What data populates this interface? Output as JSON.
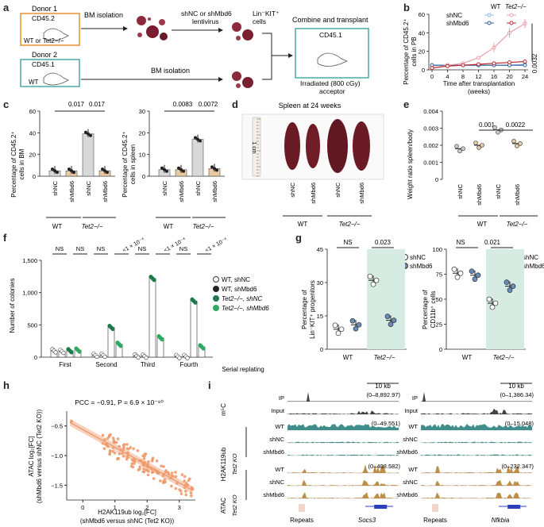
{
  "panels": {
    "a": "a",
    "b": "b",
    "c": "c",
    "d": "d",
    "e": "e",
    "f": "f",
    "g": "g",
    "h": "h",
    "i": "i"
  },
  "a": {
    "donor1": "Donor 1",
    "donor1_cd": "CD45.2",
    "donor1_geno": "WT or Tet2−/−",
    "donor2": "Donor 2",
    "donor2_cd": "CD45.1",
    "donor2_geno": "WT",
    "bm_isolation": "BM isolation",
    "bm_isolation2": "BM isolation",
    "lentivirus_1": "shNC or shMbd6",
    "lentivirus_2": "lentivirus",
    "lin_kit": "Lin⁻KIT⁺",
    "cells": "cells",
    "combine": "Combine and transplant",
    "acceptor_cd": "CD45.1",
    "acceptor_1": "Irradiated (800 cGy)",
    "acceptor_2": "acceptor"
  },
  "b": {
    "ylabel_1": "Percentage of CD45.2⁺",
    "ylabel_2": "cells in PB",
    "xlabel_1": "Time after transplantation",
    "xlabel_2": "(weeks)",
    "legend_wt": "WT",
    "legend_tet2": "Tet2−/−",
    "legend_shnc": "shNC",
    "legend_shmbd6": "shMbd6",
    "pvalue": "0.0032",
    "yticks": [
      "0",
      "20",
      "40",
      "60"
    ],
    "xticks": [
      "0",
      "4",
      "8",
      "12",
      "16",
      "20",
      "24"
    ]
  },
  "c": {
    "left_ylabel_1": "Percentage of CD45.2⁺",
    "left_ylabel_2": "cells in BM",
    "left_p1": "0.017",
    "left_p2": "0.017",
    "left_yticks": [
      "0",
      "20",
      "40",
      "60"
    ],
    "right_ylabel_1": "Percentage of CD45.2⁺",
    "right_ylabel_2": "cells in spleen",
    "right_p1": "0.0083",
    "right_p2": "0.0072",
    "right_yticks": [
      "0",
      "10",
      "20",
      "30"
    ],
    "xcats": [
      "shNC",
      "shMbd6",
      "shNC",
      "shMbd6"
    ],
    "group_wt": "WT",
    "group_tet2": "Tet2−/−"
  },
  "d": {
    "title": "Spleen at 24 weeks",
    "ruler": "1 cm",
    "xcats": [
      "shNC",
      "shMbd6",
      "shNC",
      "shMbd6"
    ],
    "group_wt": "WT",
    "group_tet2": "Tet2−/−"
  },
  "e": {
    "ylabel": "Weight ratio spleen/body",
    "p1": "0.001",
    "p2": "0.0022",
    "yticks": [
      "0",
      "0.001",
      "0.002",
      "0.003",
      "0.004"
    ],
    "xcats": [
      "shNC",
      "shMbd6",
      "shNC",
      "shMbd6"
    ],
    "group_wt": "WT",
    "group_tet2": "Tet2−/−"
  },
  "f": {
    "ylabel": "Number of colonies",
    "yticks": [
      "0",
      "500",
      "1,000",
      "1,500"
    ],
    "xcats": [
      "First",
      "Second",
      "Third",
      "Fourth"
    ],
    "xaxis": "Serial replating",
    "sig": [
      "NS",
      "NS",
      "NS",
      "<1 × 10⁻⁴",
      "NS",
      "<1 × 10⁻⁴",
      "NS",
      "<1 × 10⁻⁴"
    ],
    "legend": [
      "WT, shNC",
      "WT, shMbd6",
      "Tet2−/−, shNC",
      "Tet2−/−, shMbd6"
    ]
  },
  "g": {
    "left_ylabel_1": "Percentage of",
    "left_ylabel_2": "Lin⁻KIT⁺ progenitors",
    "left_ns": "NS",
    "left_p": "0.023",
    "left_yticks": [
      "0",
      "15",
      "30",
      "45"
    ],
    "right_ylabel_1": "Percentage of",
    "right_ylabel_2": "CD11b⁺ cells",
    "right_ns": "NS",
    "right_p": "0.021",
    "right_yticks": [
      "0",
      "25",
      "50",
      "75",
      "100"
    ],
    "xcats": [
      "WT",
      "Tet2−/−"
    ],
    "legend_shnc": "shNC",
    "legend_shmbd6": "shMbd6"
  },
  "h": {
    "annotation": "PCC = −0.91, P = 6.9 × 10⁻⁸⁰",
    "ylabel_1": "ATAC log₂[FC]",
    "ylabel_2": "(shMbd6 versus shNC (Tet2 KO))",
    "xlabel_1": "H2AK119ub log₂[FC]",
    "xlabel_2": "(shMbd6 versus shNC (Tet2 KO))",
    "yticks": [
      "−0.5",
      "−1.0",
      "−1.5"
    ],
    "xticks": [
      "0",
      "1",
      "2",
      "3"
    ]
  },
  "i": {
    "scale_left": "10 kb",
    "scale_right": "10 kb",
    "m5c": "m⁵C",
    "h2ak": "H2AK119ub",
    "atac": "ATAC",
    "tet2ko": "Tet2 KO",
    "rows": [
      "IP",
      "Input",
      "WT",
      "shNC",
      "shMbd6",
      "WT",
      "shNC",
      "shMbd6"
    ],
    "ranges_left": [
      "(0–8,892.97)",
      "(0–49.551)",
      "(0–408.582)"
    ],
    "ranges_right": [
      "(0–1,386.34)",
      "(0–15,048)",
      "(0–232.347)"
    ],
    "repeats_left": "Repeats",
    "gene_left": "Socs3",
    "repeats_right": "Repeats",
    "gene_right": "Nfkbia"
  },
  "chart_data": [
    {
      "panel": "b",
      "type": "line",
      "title": "",
      "xlabel": "Time after transplantation (weeks)",
      "ylabel": "Percentage of CD45.2+ cells in PB",
      "x": [
        0,
        4,
        8,
        12,
        16,
        20,
        24
      ],
      "ylim": [
        0,
        60
      ],
      "series": [
        {
          "name": "WT shNC",
          "values": [
            5,
            5,
            5,
            5,
            5,
            5,
            6
          ]
        },
        {
          "name": "WT shMbd6",
          "values": [
            5,
            5,
            5,
            5,
            5,
            5,
            5
          ]
        },
        {
          "name": "Tet2-/- shNC",
          "values": [
            2,
            5,
            7,
            13,
            24,
            40,
            50
          ]
        },
        {
          "name": "Tet2-/- shMbd6",
          "values": [
            2,
            4,
            5,
            6,
            7,
            8,
            9
          ]
        }
      ]
    },
    {
      "panel": "c-left",
      "type": "bar",
      "categories": [
        "WT shNC",
        "WT shMbd6",
        "Tet2-/- shNC",
        "Tet2-/- shMbd6"
      ],
      "values": [
        5,
        5,
        39,
        5
      ],
      "ylim": [
        0,
        60
      ]
    },
    {
      "panel": "c-right",
      "type": "bar",
      "categories": [
        "WT shNC",
        "WT shMbd6",
        "Tet2-/- shNC",
        "Tet2-/- shMbd6"
      ],
      "values": [
        3,
        3,
        17,
        3.5
      ],
      "ylim": [
        0,
        30
      ]
    },
    {
      "panel": "e",
      "type": "scatter",
      "categories": [
        "WT shNC",
        "WT shMbd6",
        "Tet2-/- shNC",
        "Tet2-/- shMbd6"
      ],
      "values": [
        0.0018,
        0.002,
        0.0029,
        0.0021
      ],
      "ylim": [
        0,
        0.004
      ]
    },
    {
      "panel": "f",
      "type": "bar",
      "categories": [
        "First",
        "Second",
        "Third",
        "Fourth"
      ],
      "ylim": [
        0,
        1500
      ],
      "series": [
        {
          "name": "WT, shNC",
          "values": [
            100,
            30,
            20,
            10
          ]
        },
        {
          "name": "WT, shMbd6",
          "values": [
            90,
            30,
            15,
            10
          ]
        },
        {
          "name": "Tet2-/-, shNC",
          "values": [
            100,
            460,
            1220,
            870
          ]
        },
        {
          "name": "Tet2-/-, shMbd6",
          "values": [
            110,
            200,
            300,
            160
          ]
        }
      ]
    },
    {
      "panel": "g-left",
      "type": "scatter",
      "categories": [
        "WT shNC",
        "WT shMbd6",
        "Tet2-/- shNC",
        "Tet2-/- shMbd6"
      ],
      "values": [
        9,
        11,
        31,
        13
      ],
      "ylim": [
        0,
        45
      ]
    },
    {
      "panel": "g-right",
      "type": "scatter",
      "categories": [
        "WT shNC",
        "WT shMbd6",
        "Tet2-/- shNC",
        "Tet2-/- shMbd6"
      ],
      "values": [
        76,
        74,
        46,
        63
      ],
      "ylim": [
        0,
        100
      ]
    },
    {
      "panel": "h",
      "type": "scatter",
      "xlabel": "H2AK119ub log2[FC]",
      "ylabel": "ATAC log2[FC]",
      "xlim": [
        -0.5,
        3.5
      ],
      "ylim": [
        -1.75,
        -0.25
      ],
      "fit": {
        "slope": -0.3,
        "intercept": -0.56
      }
    }
  ]
}
